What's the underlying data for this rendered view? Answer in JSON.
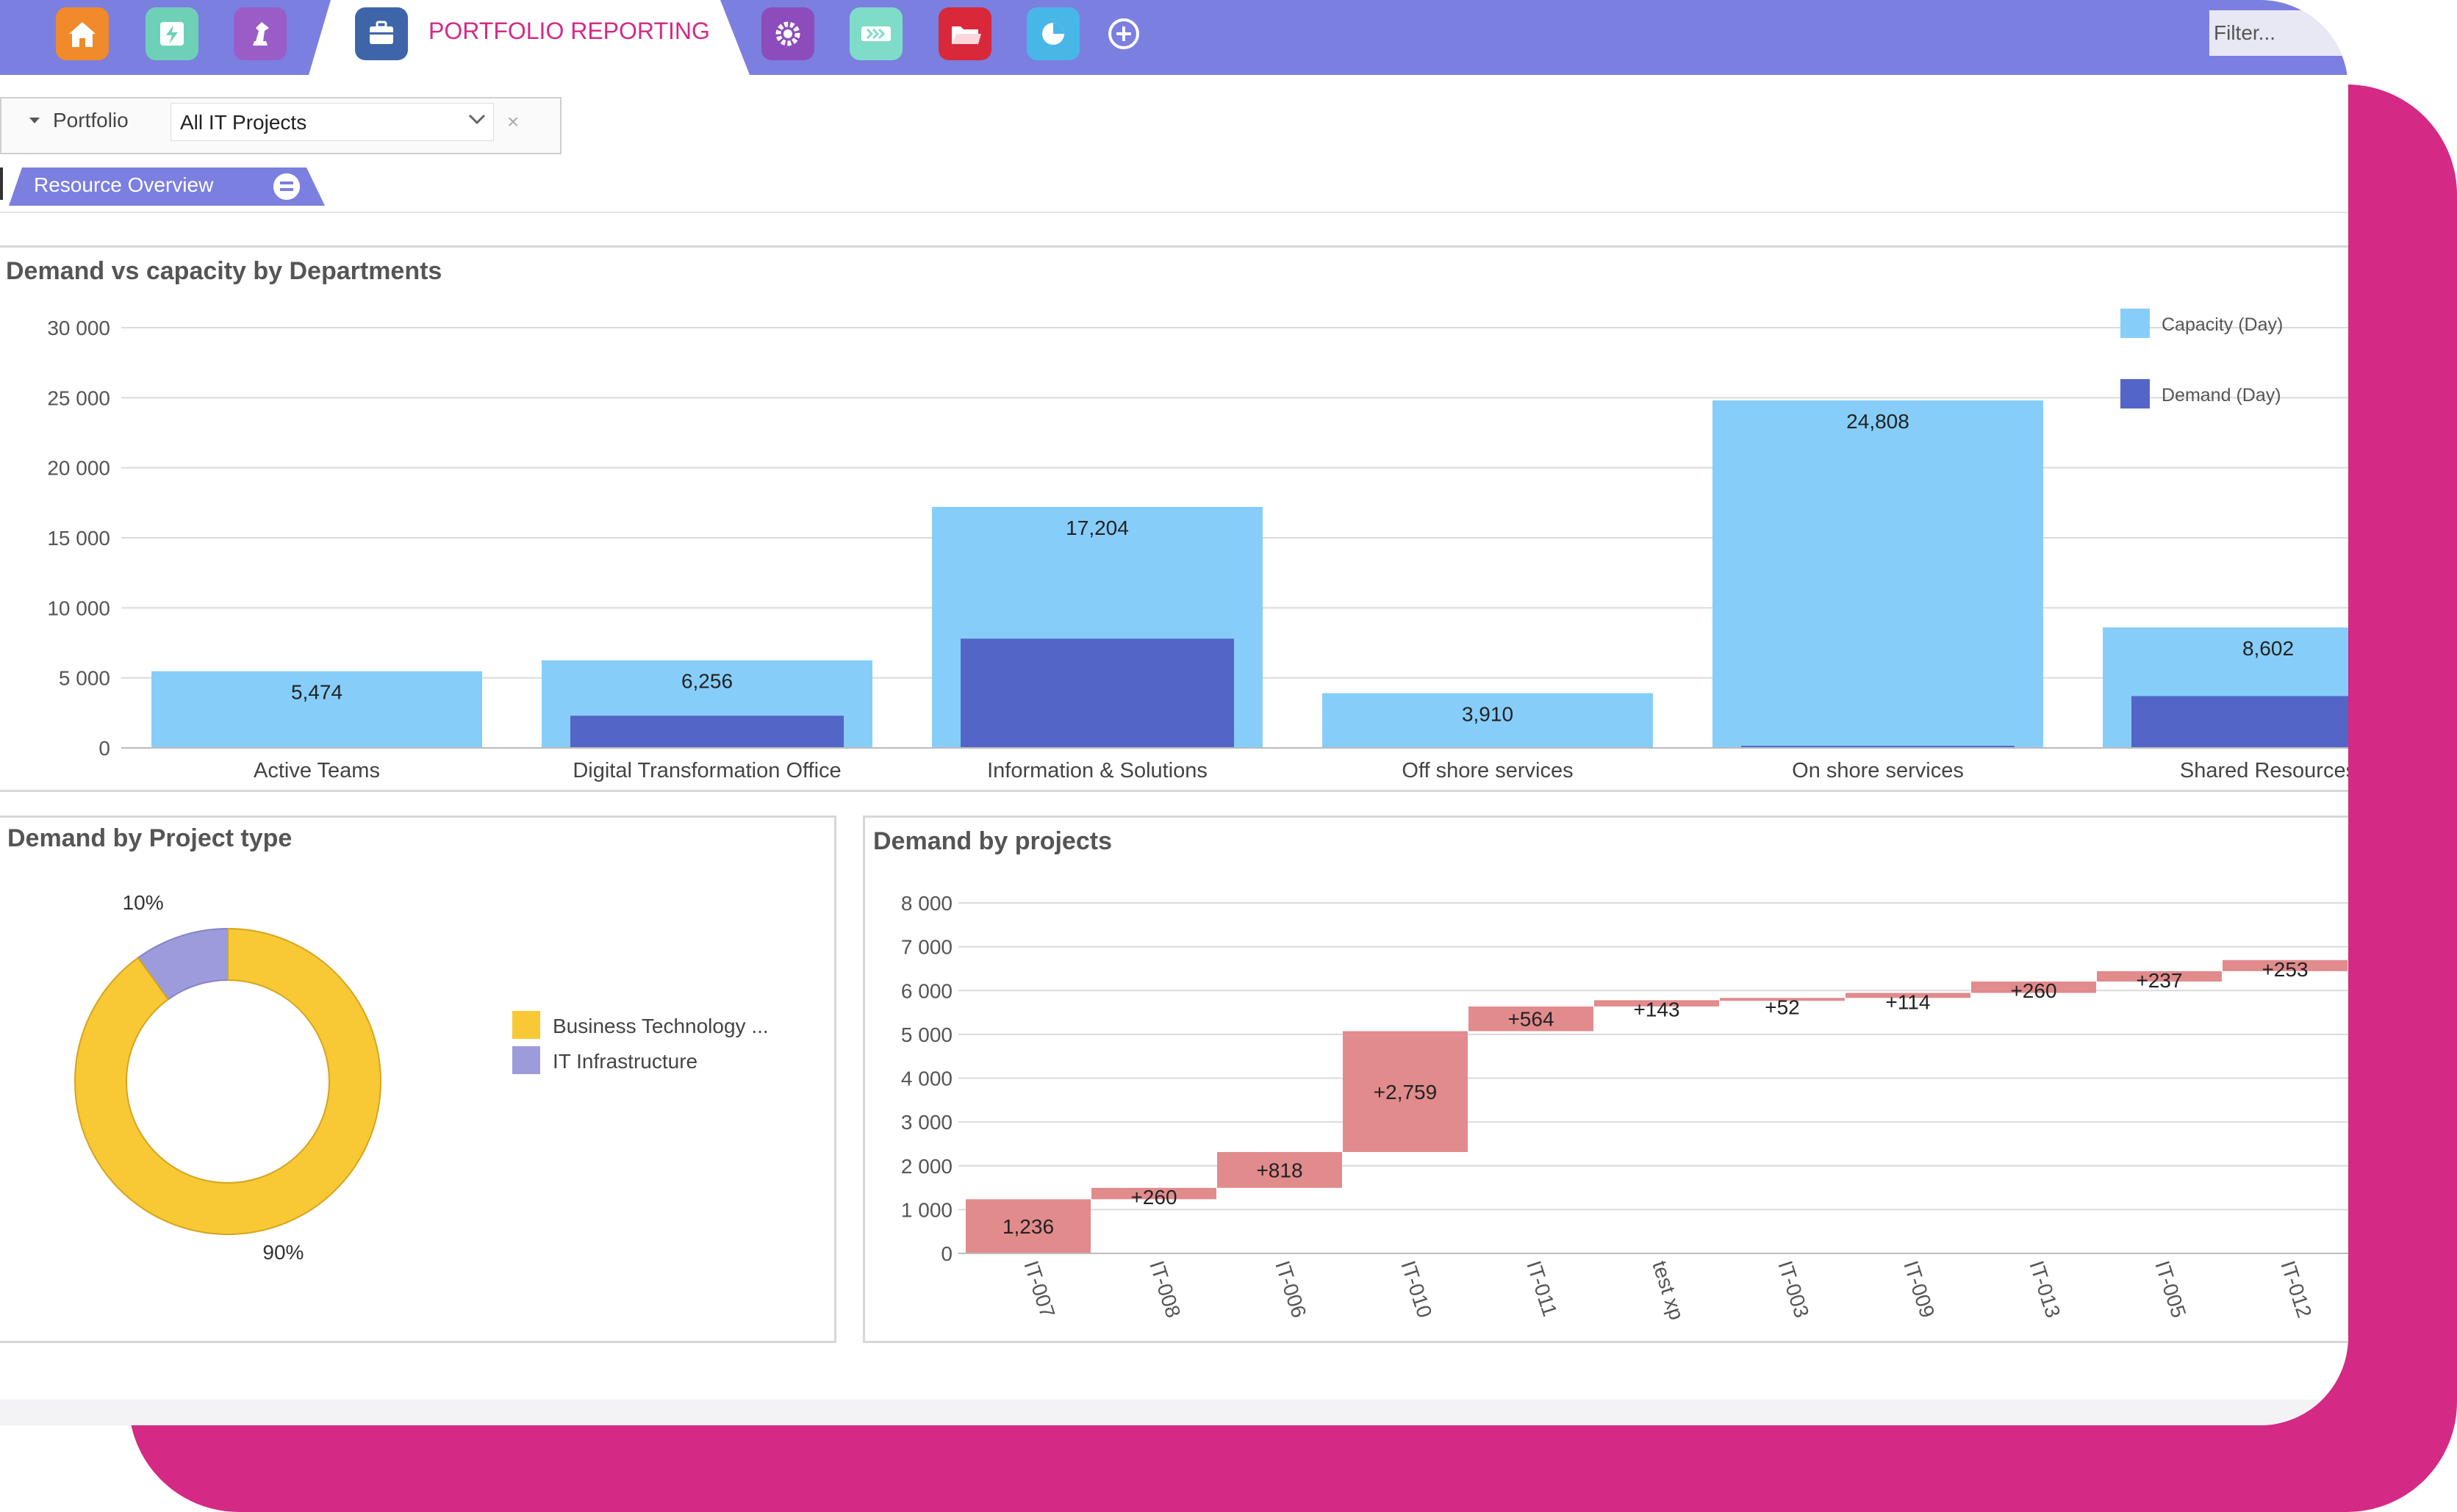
{
  "colors": {
    "accent": "#d42a85",
    "topbar": "#7b7fe0",
    "capacity": "#86cef9",
    "demand": "#5366c8",
    "donut_a": "#f8c934",
    "donut_b": "#9c9cdc",
    "waterfall": "#e18b8c"
  },
  "toolbar": {
    "icons": [
      "home-icon",
      "bolt-icon",
      "chess-icon",
      "briefcase-icon",
      "gear-icon",
      "chevrons-icon",
      "folder-icon",
      "pie-chart-icon",
      "plus-icon"
    ],
    "active_tab": "PORTFOLIO REPORTING",
    "filter_placeholder": "Filter..."
  },
  "filters": {
    "portfolio_label": "Portfolio",
    "portfolio_value": "All IT Projects",
    "clear": "×"
  },
  "view_tab": {
    "label": "Resource Overview"
  },
  "panels": {
    "dept_title": "Demand vs capacity by Departments",
    "type_title": "Demand by Project type",
    "projects_title": "Demand by projects"
  },
  "chart_data": [
    {
      "type": "bar",
      "title": "Demand vs capacity by Departments",
      "categories": [
        "Active Teams",
        "Digital Transformation Office",
        "Information & Solutions",
        "Off shore services",
        "On shore services",
        "Shared Resources"
      ],
      "series": [
        {
          "name": "Capacity (Day)",
          "values": [
            5474,
            6256,
            17204,
            3910,
            24808,
            8602
          ]
        },
        {
          "name": "Demand (Day)",
          "values": [
            0,
            2300,
            7800,
            0,
            150,
            3700
          ]
        }
      ],
      "data_labels": [
        "5,474",
        "6,256",
        "17,204",
        "3,910",
        "24,808",
        "8,602"
      ],
      "yticks": [
        "0",
        "5 000",
        "10 000",
        "15 000",
        "20 000",
        "25 000",
        "30 000"
      ],
      "ylim": [
        0,
        30000
      ],
      "grid": true,
      "legend": "top-right"
    },
    {
      "type": "pie",
      "title": "Demand by Project type",
      "labels": [
        "Business Technology ...",
        "IT Infrastructure"
      ],
      "values": [
        90,
        10
      ],
      "data_labels": [
        "90%",
        "10%"
      ],
      "legend": "right"
    },
    {
      "type": "bar",
      "subtype": "waterfall",
      "title": "Demand by projects",
      "categories": [
        "IT-007",
        "IT-008",
        "IT-006",
        "IT-010",
        "IT-011",
        "test xp",
        "IT-003",
        "IT-009",
        "IT-013",
        "IT-005",
        "IT-012"
      ],
      "values": [
        1236,
        260,
        818,
        2759,
        564,
        143,
        52,
        114,
        260,
        237,
        253
      ],
      "data_labels": [
        "1,236",
        "+260",
        "+818",
        "+2,759",
        "+564",
        "+143",
        "+52",
        "+114",
        "+260",
        "+237",
        "+253"
      ],
      "yticks": [
        "0",
        "1 000",
        "2 000",
        "3 000",
        "4 000",
        "5 000",
        "6 000",
        "7 000",
        "8 000"
      ],
      "ylim": [
        0,
        8000
      ],
      "grid": true
    }
  ]
}
